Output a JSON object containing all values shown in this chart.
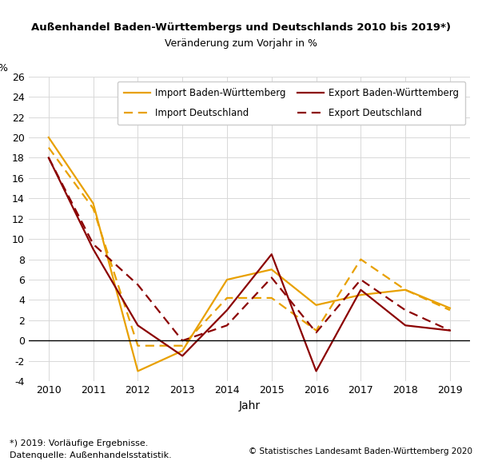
{
  "years": [
    2010,
    2011,
    2012,
    2013,
    2014,
    2015,
    2016,
    2017,
    2018,
    2019
  ],
  "import_bw": [
    20.0,
    13.5,
    -3.0,
    -1.0,
    6.0,
    7.0,
    3.5,
    4.5,
    5.0,
    3.2
  ],
  "import_de": [
    19.0,
    13.0,
    -0.5,
    -0.5,
    4.2,
    4.2,
    1.0,
    8.0,
    5.0,
    3.0
  ],
  "export_bw": [
    18.0,
    9.0,
    1.5,
    -1.5,
    3.0,
    8.5,
    -3.0,
    5.0,
    1.5,
    1.0
  ],
  "export_de": [
    18.0,
    9.5,
    5.5,
    0.0,
    1.5,
    6.2,
    0.8,
    6.0,
    3.0,
    1.0
  ],
  "color_orange": "#E8A000",
  "color_darkred": "#8B0000",
  "title_main": "Außenhandel Baden-Württembergs und Deutschlands 2010 bis 2019*)",
  "title_sub": "Veränderung zum Vorjahr in %",
  "ylabel_top": "%",
  "xlabel": "Jahr",
  "ylim": [
    -4,
    26
  ],
  "yticks": [
    -4,
    -2,
    0,
    2,
    4,
    6,
    8,
    10,
    12,
    14,
    16,
    18,
    20,
    22,
    24,
    26
  ],
  "footnote1": "*) 2019: Vorläufige Ergebnisse.",
  "footnote2": "Datenquelle: Außenhandelsstatistik.",
  "copyright": "© Statistisches Landesamt Baden-Württemberg 2020",
  "legend_entries": [
    "Import Baden-Württemberg",
    "Import Deutschland",
    "Export Baden-Württemberg",
    "Export Deutschland"
  ],
  "bg_color": "#ffffff",
  "grid_color": "#d8d8d8"
}
